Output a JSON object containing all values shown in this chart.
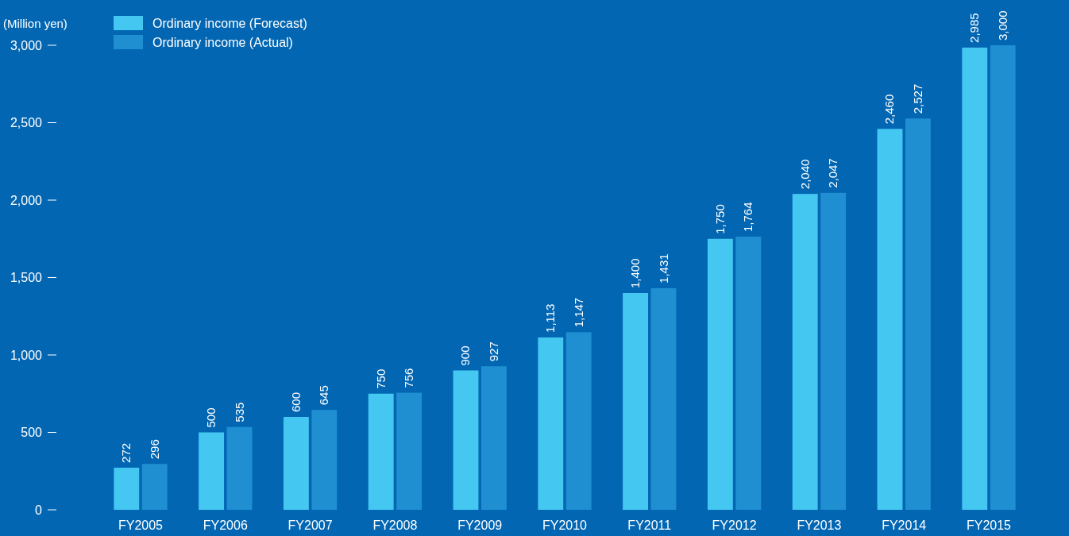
{
  "chart_data": {
    "type": "bar",
    "ylabel": "(Million yen)",
    "categories": [
      "FY2005",
      "FY2006",
      "FY2007",
      "FY2008",
      "FY2009",
      "FY2010",
      "FY2011",
      "FY2012",
      "FY2013",
      "FY2014",
      "FY2015"
    ],
    "series": [
      {
        "name": "Ordinary income (Forecast)",
        "color": "#44c8f2",
        "values": [
          272,
          500,
          600,
          750,
          900,
          1113,
          1400,
          1750,
          2040,
          2460,
          2985
        ],
        "value_labels": [
          "272",
          "500",
          "600",
          "750",
          "900",
          "1,113",
          "1,400",
          "1,750",
          "2,040",
          "2,460",
          "2,985"
        ]
      },
      {
        "name": "Ordinary income (Actual)",
        "color": "#1f8fd2",
        "values": [
          296,
          535,
          645,
          756,
          927,
          1147,
          1431,
          1764,
          2047,
          2527,
          3000
        ],
        "value_labels": [
          "296",
          "535",
          "645",
          "756",
          "927",
          "1,147",
          "1,431",
          "1,764",
          "2,047",
          "2,527",
          "3,000"
        ]
      }
    ],
    "ylim": [
      0,
      3000
    ],
    "yticks": [
      {
        "value": 0,
        "label": "0"
      },
      {
        "value": 500,
        "label": "500"
      },
      {
        "value": 1000,
        "label": "1,000"
      },
      {
        "value": 1500,
        "label": "1,500"
      },
      {
        "value": 2000,
        "label": "2,000"
      },
      {
        "value": 2500,
        "label": "2,500"
      },
      {
        "value": 3000,
        "label": "3,000"
      }
    ],
    "grid": false,
    "legend": "top left"
  }
}
